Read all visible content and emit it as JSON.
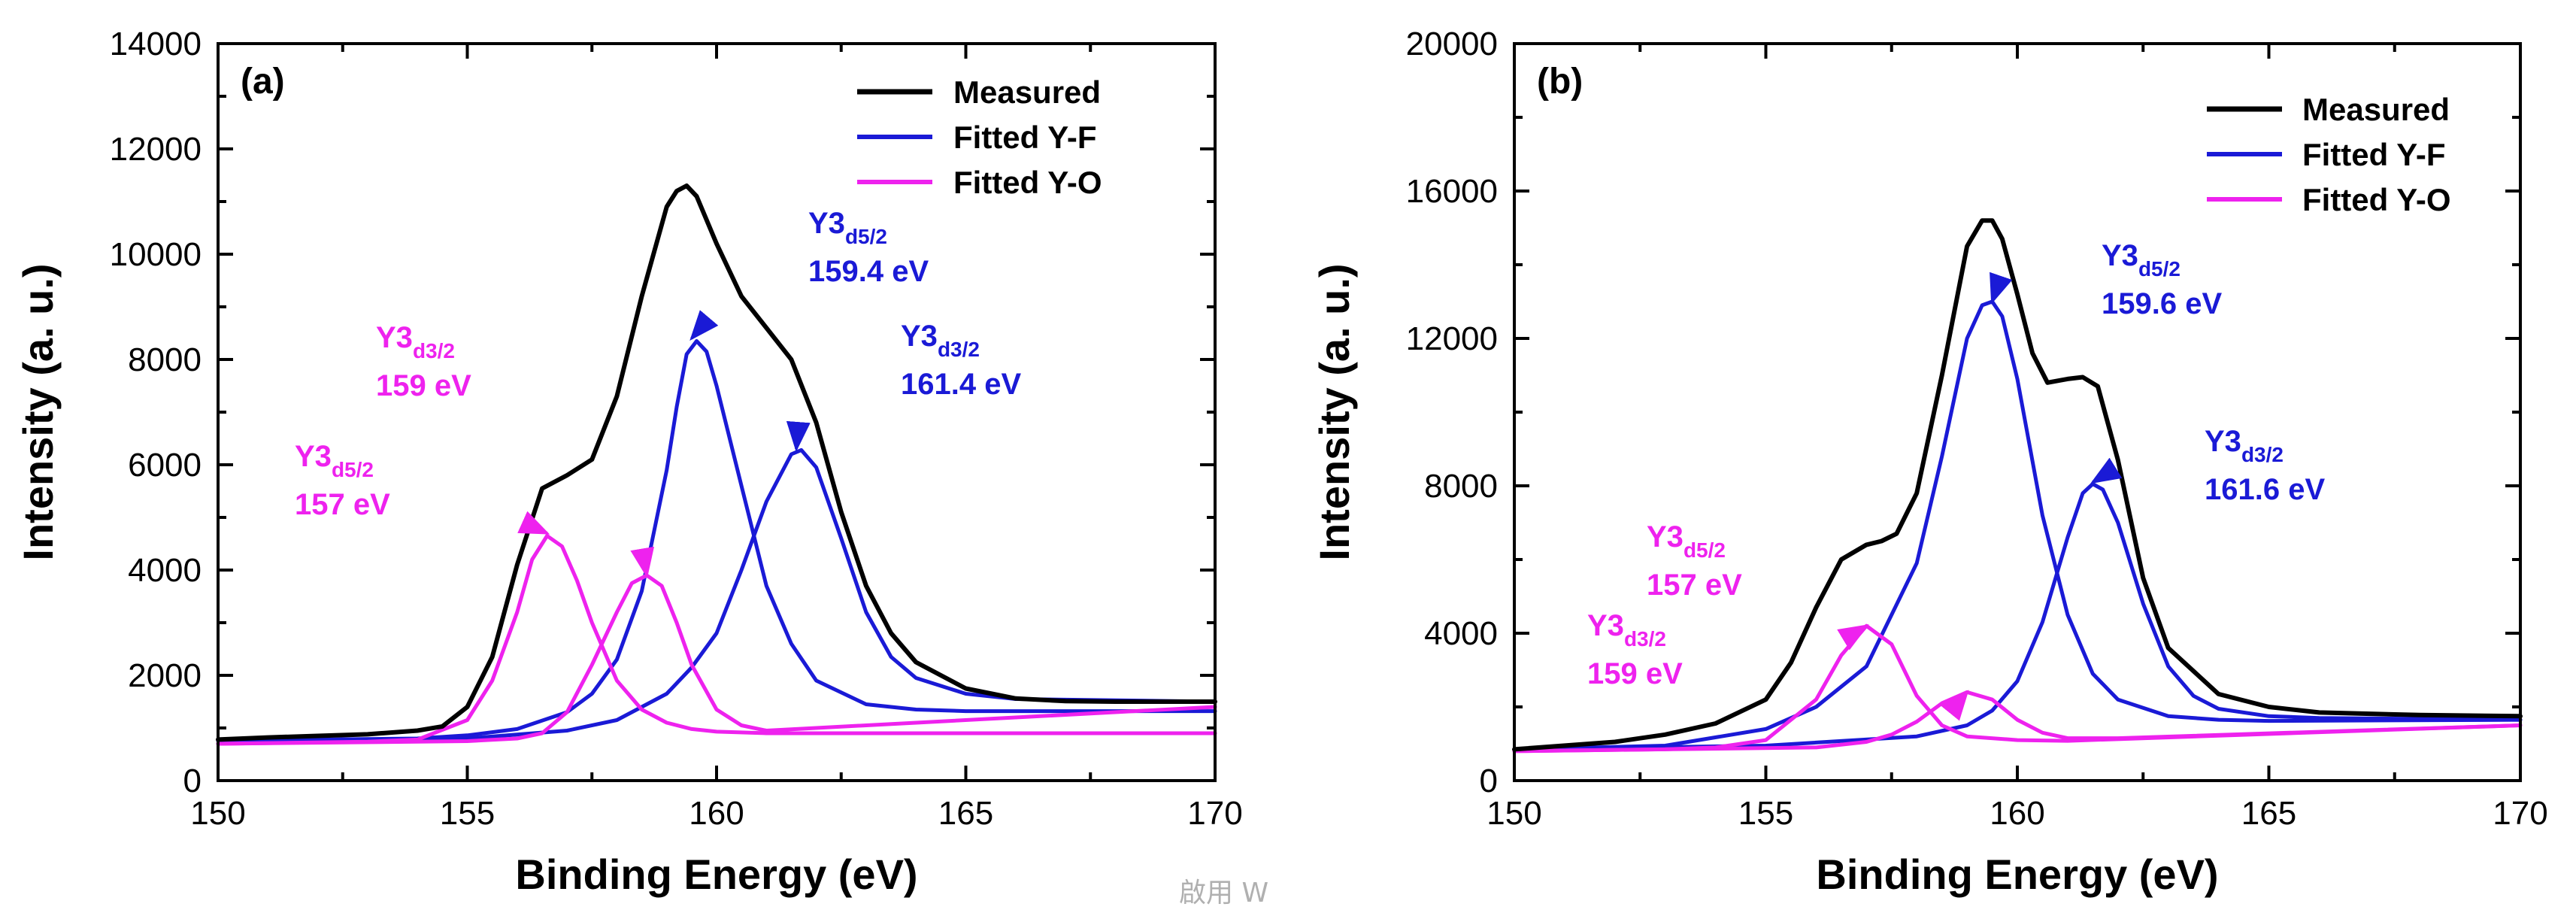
{
  "watermark": "啟用 W",
  "chart_data": [
    {
      "type": "line",
      "panel_label": "(a)",
      "xlabel": "Binding Energy (eV)",
      "ylabel": "Intensity (a. u.)",
      "xlim": [
        150,
        170
      ],
      "ylim": [
        0,
        14000
      ],
      "xticks": [
        150,
        155,
        160,
        165,
        170
      ],
      "yticks": [
        0,
        2000,
        4000,
        6000,
        8000,
        10000,
        12000,
        14000
      ],
      "grid": false,
      "legend_position": "top-right",
      "colors": {
        "measured": "#000000",
        "yf": "#1a1ad6",
        "yo": "#ee22ee"
      },
      "series": [
        {
          "name": "Measured",
          "role": "measured",
          "color": "#000000",
          "x": [
            150,
            151,
            152,
            153,
            154,
            154.5,
            155,
            155.5,
            156,
            156.5,
            157,
            157.5,
            158,
            158.5,
            159,
            159.2,
            159.4,
            159.6,
            160,
            160.5,
            161,
            161.5,
            162,
            162.5,
            163,
            163.5,
            164,
            165,
            166,
            167,
            168,
            170
          ],
          "values": [
            780,
            820,
            850,
            880,
            950,
            1030,
            1400,
            2350,
            4100,
            5550,
            5800,
            6100,
            7300,
            9200,
            10900,
            11200,
            11300,
            11100,
            10200,
            9200,
            8600,
            8000,
            6800,
            5100,
            3700,
            2800,
            2250,
            1750,
            1560,
            1510,
            1500,
            1500
          ]
        },
        {
          "name": "Fitted Y-F",
          "role": "fit",
          "peak": "Y-F 3d5/2",
          "color": "#1a1ad6",
          "x": [
            150,
            154,
            155,
            156,
            157,
            157.5,
            158,
            158.5,
            159,
            159.2,
            159.4,
            159.6,
            159.8,
            160,
            160.5,
            161,
            161.5,
            162,
            163,
            164,
            165,
            170
          ],
          "values": [
            760,
            800,
            860,
            980,
            1300,
            1650,
            2300,
            3600,
            5900,
            7100,
            8100,
            8350,
            8150,
            7500,
            5600,
            3700,
            2600,
            1900,
            1450,
            1350,
            1320,
            1320
          ]
        },
        {
          "name": "Fitted Y-F",
          "role": "fit",
          "peak": "Y-F 3d3/2",
          "color": "#1a1ad6",
          "x": [
            150,
            155,
            157,
            158,
            159,
            159.5,
            160,
            160.5,
            161,
            161.5,
            161.7,
            162,
            162.5,
            163,
            163.5,
            164,
            165,
            166,
            170
          ],
          "values": [
            760,
            800,
            950,
            1150,
            1650,
            2150,
            2800,
            4000,
            5300,
            6200,
            6280,
            5950,
            4600,
            3200,
            2350,
            1950,
            1650,
            1550,
            1500
          ]
        },
        {
          "name": "Fitted Y-O",
          "role": "fit",
          "peak": "Y-O 3d5/2",
          "color": "#ee22ee",
          "x": [
            150,
            153,
            154,
            155,
            155.5,
            156,
            156.3,
            156.6,
            156.9,
            157.2,
            157.5,
            158,
            158.5,
            159,
            159.5,
            160,
            161,
            170
          ],
          "values": [
            700,
            740,
            780,
            1150,
            1900,
            3200,
            4200,
            4650,
            4450,
            3800,
            3000,
            1900,
            1350,
            1100,
            980,
            930,
            900,
            900
          ]
        },
        {
          "name": "Fitted Y-O",
          "role": "fit",
          "peak": "Y-O 3d3/2",
          "color": "#ee22ee",
          "x": [
            150,
            155,
            156,
            156.5,
            157,
            157.5,
            158,
            158.3,
            158.6,
            158.9,
            159.2,
            159.5,
            160,
            160.5,
            161,
            162,
            170
          ],
          "values": [
            700,
            750,
            800,
            900,
            1300,
            2200,
            3200,
            3750,
            3900,
            3700,
            3000,
            2200,
            1350,
            1050,
            950,
            1000,
            1400
          ]
        }
      ],
      "annotations": [
        {
          "main": "Y3",
          "sub": "d5/2",
          "value": "159.4 eV",
          "color": "#1a1ad6",
          "target": [
            159.5,
            8400
          ]
        },
        {
          "main": "Y3",
          "sub": "d3/2",
          "value": "161.4 eV",
          "color": "#1a1ad6",
          "target": [
            161.6,
            6300
          ]
        },
        {
          "main": "Y3",
          "sub": "d3/2",
          "value": "159 eV",
          "color": "#ee22ee",
          "target": [
            158.6,
            3900
          ]
        },
        {
          "main": "Y3",
          "sub": "d5/2",
          "value": "157 eV",
          "color": "#ee22ee",
          "target": [
            156.6,
            4700
          ]
        }
      ]
    },
    {
      "type": "line",
      "panel_label": "(b)",
      "xlabel": "Binding Energy (eV)",
      "ylabel": "Intensity (a. u.)",
      "xlim": [
        150,
        170
      ],
      "ylim": [
        0,
        20000
      ],
      "xticks": [
        150,
        155,
        160,
        165,
        170
      ],
      "yticks": [
        0,
        4000,
        8000,
        12000,
        16000,
        20000
      ],
      "grid": false,
      "legend_position": "top-right",
      "colors": {
        "measured": "#000000",
        "yf": "#1a1ad6",
        "yo": "#ee22ee"
      },
      "series": [
        {
          "name": "Measured",
          "role": "measured",
          "color": "#000000",
          "x": [
            150,
            152,
            153,
            154,
            155,
            155.5,
            156,
            156.5,
            157,
            157.3,
            157.6,
            158,
            158.5,
            159,
            159.3,
            159.5,
            159.7,
            160,
            160.3,
            160.6,
            161,
            161.3,
            161.6,
            162,
            162.5,
            163,
            164,
            165,
            166,
            168,
            170
          ],
          "values": [
            850,
            1050,
            1250,
            1550,
            2200,
            3200,
            4700,
            6000,
            6400,
            6500,
            6700,
            7800,
            11000,
            14500,
            15200,
            15200,
            14700,
            13200,
            11600,
            10800,
            10900,
            10950,
            10700,
            8700,
            5500,
            3600,
            2350,
            2000,
            1850,
            1780,
            1750
          ]
        },
        {
          "name": "Fitted Y-F",
          "role": "fit",
          "peak": "Y-F 3d5/2",
          "color": "#1a1ad6",
          "x": [
            150,
            153,
            155,
            156,
            157,
            158,
            158.5,
            159,
            159.3,
            159.5,
            159.7,
            160,
            160.5,
            161,
            161.5,
            162,
            163,
            164,
            165,
            170
          ],
          "values": [
            850,
            950,
            1400,
            2000,
            3100,
            5900,
            8800,
            12000,
            12900,
            13000,
            12600,
            10900,
            7200,
            4500,
            2900,
            2200,
            1750,
            1650,
            1620,
            1650
          ]
        },
        {
          "name": "Fitted Y-F",
          "role": "fit",
          "peak": "Y-F 3d3/2",
          "color": "#1a1ad6",
          "x": [
            150,
            155,
            158,
            159,
            159.5,
            160,
            160.5,
            161,
            161.3,
            161.5,
            161.7,
            162,
            162.5,
            163,
            163.5,
            164,
            165,
            166,
            170
          ],
          "values": [
            850,
            950,
            1200,
            1500,
            1900,
            2700,
            4300,
            6600,
            7800,
            8050,
            7900,
            7000,
            4800,
            3100,
            2300,
            1950,
            1750,
            1700,
            1650
          ]
        },
        {
          "name": "Fitted Y-O",
          "role": "fit",
          "peak": "Y-O 3d5/2",
          "color": "#ee22ee",
          "x": [
            150,
            153,
            154,
            155,
            156,
            156.5,
            157,
            157.5,
            158,
            158.5,
            159,
            160,
            161,
            170
          ],
          "values": [
            800,
            850,
            900,
            1100,
            2200,
            3400,
            4200,
            3700,
            2300,
            1500,
            1200,
            1100,
            1080,
            1500
          ]
        },
        {
          "name": "Fitted Y-O",
          "role": "fit",
          "peak": "Y-O 3d3/2",
          "color": "#ee22ee",
          "x": [
            150,
            156,
            157,
            157.5,
            158,
            158.5,
            159,
            159.5,
            160,
            160.5,
            161,
            162,
            170
          ],
          "values": [
            800,
            900,
            1050,
            1250,
            1600,
            2100,
            2400,
            2200,
            1650,
            1300,
            1150,
            1150,
            1500
          ]
        }
      ],
      "annotations": [
        {
          "main": "Y3",
          "sub": "d5/2",
          "value": "159.6 eV",
          "color": "#1a1ad6",
          "target": [
            159.5,
            13000
          ]
        },
        {
          "main": "Y3",
          "sub": "d3/2",
          "value": "161.6 eV",
          "color": "#1a1ad6",
          "target": [
            161.5,
            8100
          ]
        },
        {
          "main": "Y3",
          "sub": "d5/2",
          "value": "157 eV",
          "color": "#ee22ee",
          "target": [
            157.0,
            4200
          ]
        },
        {
          "main": "Y3",
          "sub": "d3/2",
          "value": "159 eV",
          "color": "#ee22ee",
          "target": [
            159.0,
            2400
          ]
        }
      ]
    }
  ]
}
